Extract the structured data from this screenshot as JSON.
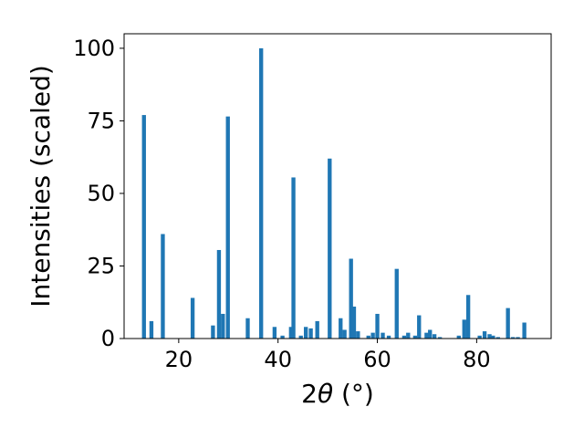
{
  "chart_data": {
    "type": "bar",
    "xlabel_prefix": "2",
    "xlabel_symbol": "θ",
    "xlabel_unit": " (°)",
    "ylabel": "Intensities (scaled)",
    "xlim": [
      9,
      95
    ],
    "ylim": [
      0,
      105
    ],
    "xticks": [
      20,
      40,
      60,
      80
    ],
    "yticks": [
      0,
      25,
      50,
      75,
      100
    ],
    "bar_width": 0.8,
    "color": "#1f77b4",
    "x": [
      13.0,
      14.5,
      16.8,
      22.8,
      26.9,
      28.1,
      28.9,
      29.9,
      33.9,
      36.6,
      39.3,
      40.9,
      42.6,
      43.1,
      44.6,
      45.6,
      46.6,
      47.9,
      50.4,
      52.6,
      53.4,
      54.7,
      55.3,
      56.1,
      58.2,
      59.1,
      60.0,
      61.1,
      62.3,
      63.9,
      65.4,
      66.2,
      67.6,
      68.4,
      69.9,
      70.6,
      71.5,
      72.6,
      76.4,
      77.5,
      78.3,
      80.6,
      81.6,
      82.6,
      83.3,
      84.3,
      86.3,
      87.3,
      88.3,
      89.6
    ],
    "values": [
      77,
      6,
      36,
      14,
      4.5,
      30.5,
      8.5,
      76.5,
      7,
      100,
      4,
      1,
      4,
      55.5,
      1,
      4,
      3.5,
      6,
      62,
      7,
      3,
      27.5,
      11,
      2.5,
      1,
      2,
      8.5,
      2,
      1,
      24,
      1,
      2,
      1,
      8,
      2,
      3,
      1.5,
      0.5,
      1,
      6.5,
      15,
      1,
      2.5,
      1.5,
      1,
      0.5,
      10.5,
      0.5,
      0.5,
      5.5
    ]
  }
}
